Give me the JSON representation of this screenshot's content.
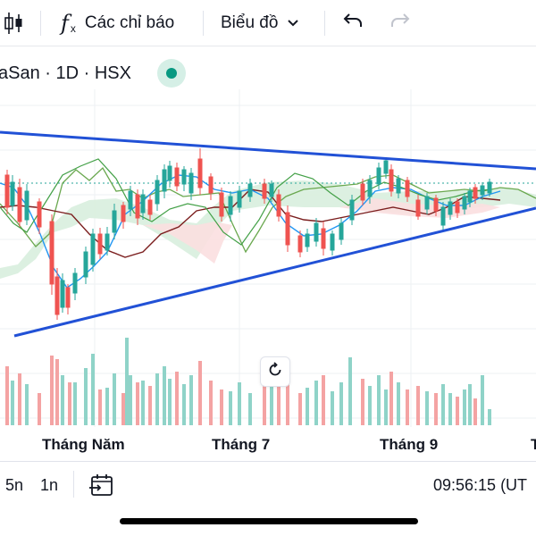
{
  "toolbar": {
    "candles_icon": "candlestick-icon",
    "indicators_icon": "function-icon",
    "indicators_label": "Các chỉ báo",
    "chart_type_label": "Biểu đồ",
    "undo_icon": "undo-icon",
    "redo_icon": "redo-icon"
  },
  "symbol": {
    "title": "aSan · 1D · HSX",
    "status": "market-open"
  },
  "time_axis": {
    "labels": [
      "Tháng Năm",
      "Tháng 7",
      "Tháng 9",
      "T"
    ]
  },
  "bottom_bar": {
    "range_5d": "5n",
    "range_1m": "1n",
    "goto_icon": "calendar-goto-icon",
    "clock": "09:56:15 (UT"
  },
  "colors": {
    "up": "#26a69a",
    "down": "#ef5350",
    "trendline": "#2151d6",
    "cloud_up": "#d8eede",
    "cloud_down": "#fbdfe0"
  }
}
